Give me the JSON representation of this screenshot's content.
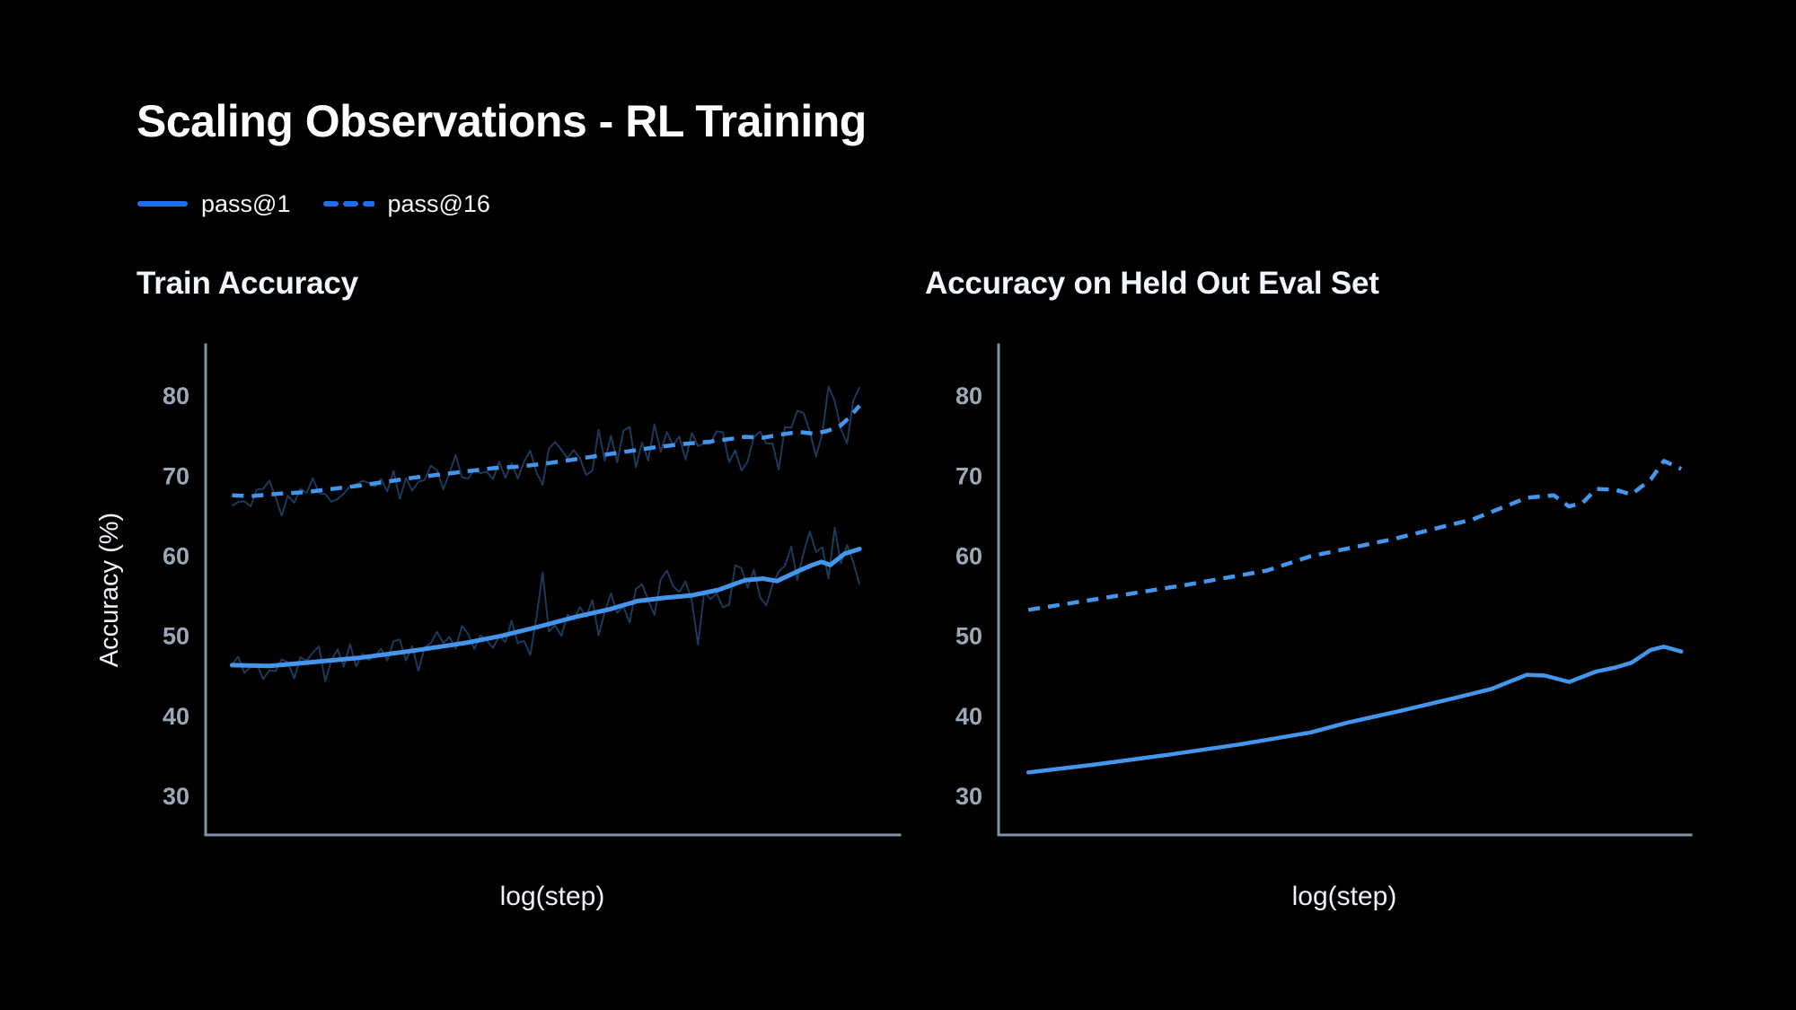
{
  "page": {
    "background": "#000000"
  },
  "header": {
    "title": "Scaling Observations - RL Training"
  },
  "legend": {
    "line_color": "#1e6fe8",
    "items": [
      {
        "label": "pass@1",
        "style": "solid"
      },
      {
        "label": "pass@16",
        "style": "dashed"
      }
    ]
  },
  "colors": {
    "accent_blue": "#1e6fe8",
    "line_blue": "#4496ec",
    "raw_navy": "#1e3e63",
    "axis": "#8492a4",
    "tick_text": "#9ca8b7",
    "label_text": "#eef1f6"
  },
  "chart_data": [
    {
      "type": "line",
      "title": "Train Accuracy",
      "xlabel": "log(step)",
      "ylabel": "Accuracy (%)",
      "grid": false,
      "legend_position": "top-left (shared)",
      "y_ticks": [
        80,
        70,
        60,
        50,
        40,
        30
      ],
      "y_range": [
        25.2,
        86.4
      ],
      "x_note": "x values are fractional positions along the unlabeled log(step) axis",
      "series": [
        {
          "name": "pass@1",
          "style": "solid",
          "color": "#4496ec",
          "width": 5,
          "points": [
            [
              0.038,
              46.4
            ],
            [
              0.092,
              46.3
            ],
            [
              0.144,
              46.7
            ],
            [
              0.221,
              47.3
            ],
            [
              0.299,
              48.2
            ],
            [
              0.376,
              49.2
            ],
            [
              0.428,
              50.1
            ],
            [
              0.48,
              51.2
            ],
            [
              0.532,
              52.4
            ],
            [
              0.583,
              53.4
            ],
            [
              0.622,
              54.4
            ],
            [
              0.661,
              54.8
            ],
            [
              0.7,
              55.1
            ],
            [
              0.739,
              55.8
            ],
            [
              0.777,
              57.0
            ],
            [
              0.803,
              57.2
            ],
            [
              0.823,
              56.9
            ],
            [
              0.855,
              58.2
            ],
            [
              0.874,
              58.9
            ],
            [
              0.887,
              59.3
            ],
            [
              0.9,
              58.9
            ],
            [
              0.92,
              60.3
            ],
            [
              0.942,
              60.9
            ]
          ]
        },
        {
          "name": "pass@16",
          "style": "dashed",
          "color": "#4496ec",
          "width": 4.5,
          "points": [
            [
              0.038,
              67.6
            ],
            [
              0.066,
              67.5
            ],
            [
              0.105,
              67.8
            ],
            [
              0.144,
              68.0
            ],
            [
              0.182,
              68.4
            ],
            [
              0.221,
              68.8
            ],
            [
              0.26,
              69.3
            ],
            [
              0.299,
              69.8
            ],
            [
              0.338,
              70.2
            ],
            [
              0.376,
              70.6
            ],
            [
              0.415,
              71.0
            ],
            [
              0.454,
              71.2
            ],
            [
              0.493,
              71.6
            ],
            [
              0.532,
              72.1
            ],
            [
              0.57,
              72.6
            ],
            [
              0.609,
              73.1
            ],
            [
              0.648,
              73.6
            ],
            [
              0.687,
              74.0
            ],
            [
              0.726,
              74.3
            ],
            [
              0.752,
              74.6
            ],
            [
              0.777,
              74.9
            ],
            [
              0.803,
              74.8
            ],
            [
              0.829,
              75.2
            ],
            [
              0.855,
              75.5
            ],
            [
              0.875,
              75.3
            ],
            [
              0.894,
              75.6
            ],
            [
              0.913,
              76.2
            ],
            [
              0.926,
              77.2
            ],
            [
              0.942,
              78.8
            ]
          ]
        },
        {
          "name": "pass@1 raw (per-step, noisy)",
          "style": "noise",
          "color": "#1e3e63",
          "base": "pass@1",
          "seed": 11,
          "n": 102,
          "amp": 3.4,
          "spike_chance": 0.1,
          "spike_scale": 1.9,
          "clamp": 7
        },
        {
          "name": "pass@16 raw (per-step, noisy)",
          "style": "noise",
          "color": "#1e3e63",
          "base": "pass@16",
          "seed": 29,
          "n": 102,
          "amp": 3.0,
          "spike_chance": 0.09,
          "spike_scale": 1.9,
          "clamp": 5.5
        }
      ]
    },
    {
      "type": "line",
      "title": "Accuracy on Held Out Eval Set",
      "xlabel": "log(step)",
      "ylabel": null,
      "grid": false,
      "y_ticks": [
        80,
        70,
        60,
        50,
        40,
        30
      ],
      "y_range": [
        25.2,
        86.4
      ],
      "x_note": "x values are fractional positions along the unlabeled log(step) axis",
      "series": [
        {
          "name": "pass@1",
          "style": "solid",
          "color": "#4496ec",
          "width": 4.5,
          "points": [
            [
              0.043,
              33.0
            ],
            [
              0.14,
              34.0
            ],
            [
              0.244,
              35.2
            ],
            [
              0.348,
              36.5
            ],
            [
              0.451,
              38.0
            ],
            [
              0.503,
              39.2
            ],
            [
              0.581,
              40.7
            ],
            [
              0.659,
              42.3
            ],
            [
              0.711,
              43.4
            ],
            [
              0.763,
              45.2
            ],
            [
              0.789,
              45.1
            ],
            [
              0.824,
              44.3
            ],
            [
              0.863,
              45.6
            ],
            [
              0.891,
              46.1
            ],
            [
              0.914,
              46.7
            ],
            [
              0.942,
              48.3
            ],
            [
              0.961,
              48.7
            ],
            [
              0.986,
              48.1
            ]
          ]
        },
        {
          "name": "pass@16",
          "style": "dashed",
          "color": "#4496ec",
          "width": 4.5,
          "points": [
            [
              0.043,
              53.3
            ],
            [
              0.153,
              54.8
            ],
            [
              0.27,
              56.4
            ],
            [
              0.387,
              58.2
            ],
            [
              0.451,
              60.0
            ],
            [
              0.568,
              62.1
            ],
            [
              0.685,
              64.6
            ],
            [
              0.763,
              67.3
            ],
            [
              0.802,
              67.6
            ],
            [
              0.824,
              66.2
            ],
            [
              0.844,
              66.7
            ],
            [
              0.863,
              68.4
            ],
            [
              0.891,
              68.3
            ],
            [
              0.914,
              67.7
            ],
            [
              0.942,
              69.6
            ],
            [
              0.961,
              71.9
            ],
            [
              0.986,
              70.9
            ]
          ]
        }
      ]
    }
  ]
}
